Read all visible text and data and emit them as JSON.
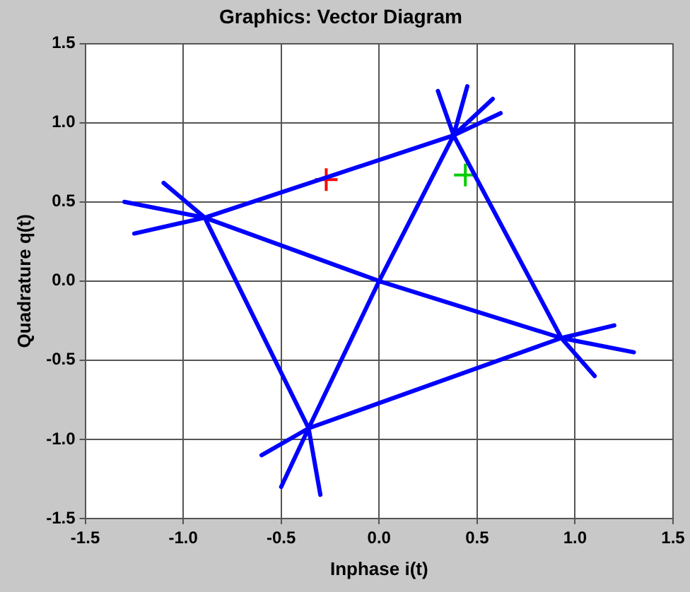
{
  "chart_data": {
    "type": "line",
    "title": "Graphics: Vector Diagram",
    "xlabel": "Inphase i(t)",
    "ylabel": "Quadrature q(t)",
    "xlim": [
      -1.5,
      1.5
    ],
    "ylim": [
      -1.5,
      1.5
    ],
    "xticks": [
      {
        "value": -1.5,
        "label": "-1.5"
      },
      {
        "value": -1,
        "label": "-1.0"
      },
      {
        "value": -0.5,
        "label": "-0.5"
      },
      {
        "value": 0,
        "label": "0.0"
      },
      {
        "value": 0.5,
        "label": "0.5"
      },
      {
        "value": 1,
        "label": "1.0"
      },
      {
        "value": 1.5,
        "label": "1.5"
      }
    ],
    "yticks": [
      {
        "value": -1.5,
        "label": "-1.5"
      },
      {
        "value": -1,
        "label": "-1.0"
      },
      {
        "value": -0.5,
        "label": "-0.5"
      },
      {
        "value": 0,
        "label": "0.0"
      },
      {
        "value": 0.5,
        "label": "0.5"
      },
      {
        "value": 1,
        "label": "1.0"
      },
      {
        "value": 1.5,
        "label": "1.5"
      }
    ],
    "grid": true,
    "legend": false,
    "series": [
      {
        "type": "line",
        "color": "#0000ff",
        "marker": "none",
        "x": [
          -0.89,
          -1.3,
          -0.89,
          -1.25,
          -0.89,
          -1.1,
          -0.89,
          0.38,
          0.3,
          0.38,
          0.45,
          0.38,
          0.62,
          0.38,
          0.58,
          0.38,
          0.93,
          1.3,
          0.93,
          1.2,
          0.93,
          1.1,
          0.93,
          -0.36,
          -0.5,
          -0.36,
          -0.3,
          -0.36,
          -0.6,
          -0.36,
          -0.89,
          0,
          0.93,
          0.38,
          0,
          -0.36
        ],
        "values": [
          0.4,
          0.5,
          0.4,
          0.3,
          0.4,
          0.62,
          0.4,
          0.92,
          1.2,
          0.92,
          1.23,
          0.92,
          1.06,
          0.92,
          1.15,
          0.92,
          -0.36,
          -0.45,
          -0.36,
          -0.28,
          -0.36,
          -0.6,
          -0.36,
          -0.93,
          -1.3,
          -0.93,
          -1.35,
          -0.93,
          -1.1,
          -0.93,
          0.4,
          0,
          -0.36,
          0.92,
          0,
          -0.93
        ]
      },
      {
        "type": "scatter",
        "color": "#ff0000",
        "marker": "cross",
        "x": [
          -0.27
        ],
        "values": [
          0.64
        ]
      },
      {
        "type": "scatter",
        "color": "#00cc00",
        "marker": "cross",
        "x": [
          0.44
        ],
        "values": [
          0.67
        ]
      }
    ]
  }
}
